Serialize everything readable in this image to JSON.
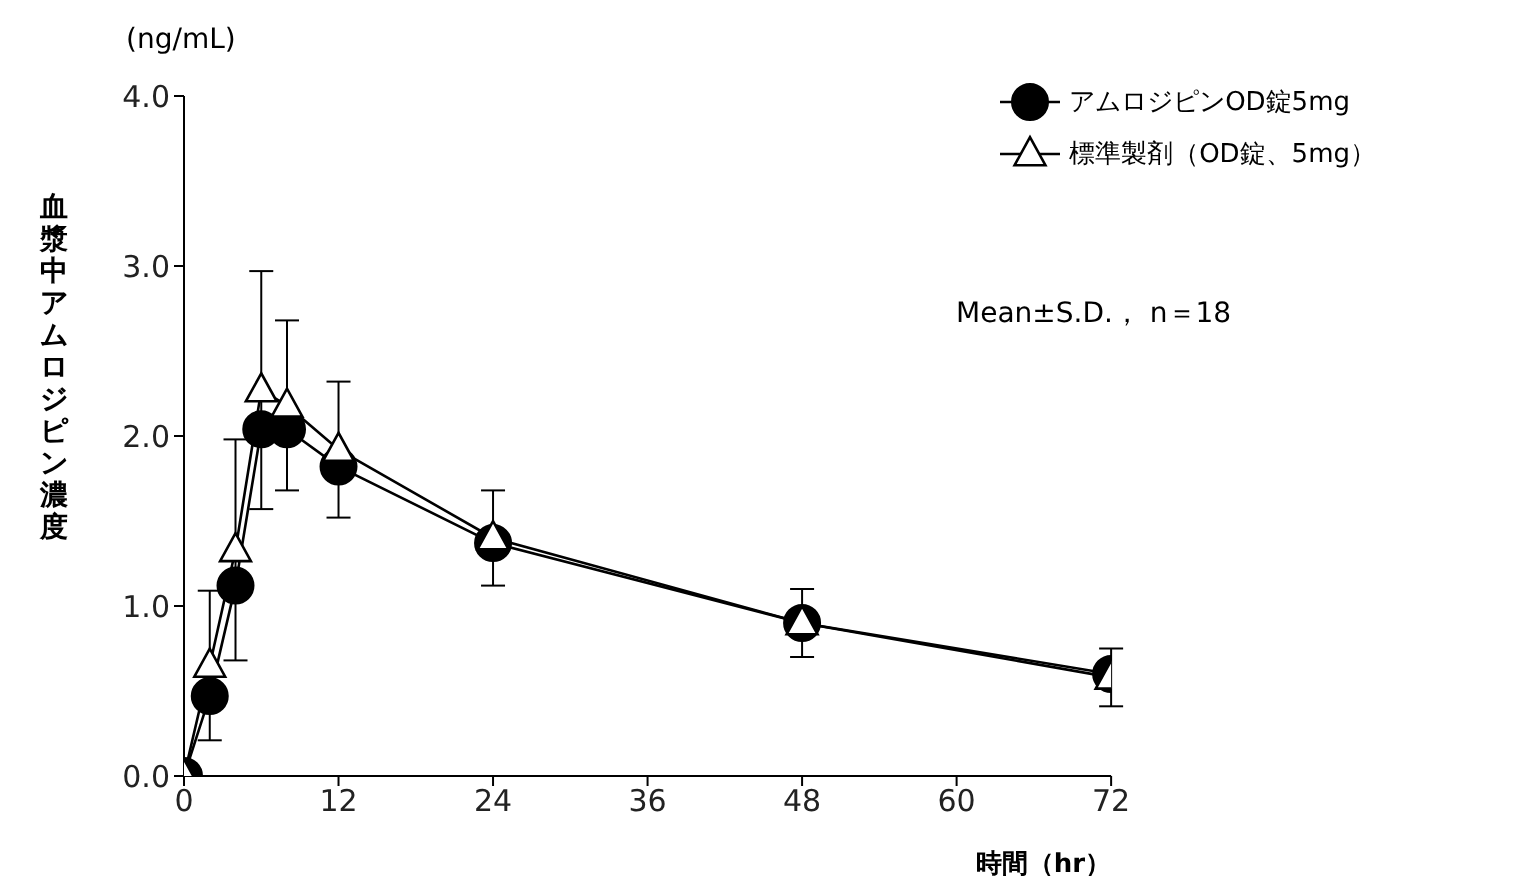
{
  "chart_data": {
    "type": "line",
    "xlabel": "時間（hr）",
    "ylabel": "血漿中アムロジピン濃度",
    "x": [
      0,
      2,
      4,
      6,
      8,
      12,
      24,
      48,
      72
    ],
    "series": [
      {
        "name": "アムロジピンOD錠5mg",
        "color": "#000000",
        "marker": "circle",
        "values": [
          0,
          0.47,
          1.12,
          2.04,
          2.04,
          1.82,
          1.37,
          0.9,
          0.6
        ]
      },
      {
        "name": "標準製剤（OD錠、5mg）",
        "color": "#000000",
        "marker": "triangle",
        "values": [
          0,
          0.65,
          1.33,
          2.27,
          2.18,
          1.92,
          1.4,
          0.9,
          0.58
        ],
        "errors": [
          null,
          0.44,
          0.65,
          0.7,
          0.5,
          0.4,
          0.28,
          0.2,
          0.17
        ]
      }
    ],
    "xlim": [
      0,
      72
    ],
    "xticks": [
      0,
      12,
      24,
      36,
      48,
      60,
      72
    ],
    "ylim": [
      0,
      4
    ],
    "yticks": [
      {
        "value": 0,
        "label": "0.0"
      },
      {
        "value": 1,
        "label": "1.0"
      },
      {
        "value": 2,
        "label": "2.0"
      },
      {
        "value": 3,
        "label": "3.0"
      },
      {
        "value": 4,
        "label": "4.0"
      }
    ],
    "grid": false,
    "legend": "top right",
    "line_style": "solid",
    "annotations": [
      "(ng/mL)",
      "Mean±S.D.， n＝18"
    ]
  }
}
